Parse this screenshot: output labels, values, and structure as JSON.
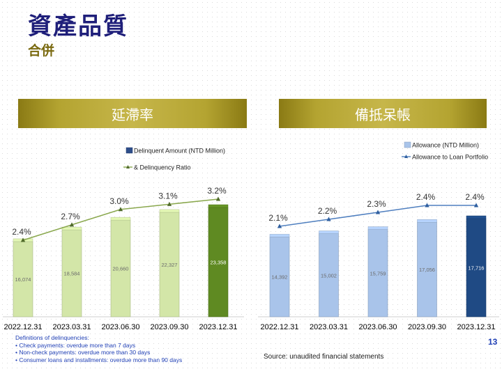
{
  "header": {
    "title": "資產品質",
    "subtitle": "合併"
  },
  "chart_data": [
    {
      "type": "bar",
      "title": "延滯率",
      "categories": [
        "2022.12.31",
        "2023.03.31",
        "2023.06.30",
        "2023.09.30",
        "2023.12.31"
      ],
      "series": [
        {
          "name": "Delinquent Amount (NTD Million)",
          "type": "bar",
          "values": [
            16074,
            18584,
            20660,
            22327,
            23358
          ],
          "value_labels": [
            "16,074",
            "18,584",
            "20,660",
            "22,327",
            "23,358"
          ]
        },
        {
          "name": "& Delinquency Ratio",
          "type": "line",
          "values": [
            2.4,
            2.7,
            3.0,
            3.1,
            3.2
          ],
          "value_labels": [
            "2.4%",
            "2.7%",
            "3.0%",
            "3.1%",
            "3.2%"
          ]
        }
      ],
      "colors": {
        "bar": "#d3e6a8",
        "bar_highlight": "#5f8a22",
        "line": "#8aa84e"
      }
    },
    {
      "type": "bar",
      "title": "備抵呆帳",
      "categories": [
        "2022.12.31",
        "2023.03.31",
        "2023.06.30",
        "2023.09.30",
        "2023.12.31"
      ],
      "series": [
        {
          "name": "Allowance  (NTD Million)",
          "type": "bar",
          "values": [
            14392,
            15002,
            15759,
            17056,
            17716
          ],
          "value_labels": [
            "14,392",
            "15,002",
            "15,759",
            "17,056",
            "17,716"
          ]
        },
        {
          "name": "Allowance to Loan Portfolio",
          "type": "line",
          "values": [
            2.1,
            2.2,
            2.3,
            2.4,
            2.4
          ],
          "value_labels": [
            "2.1%",
            "2.2%",
            "2.3%",
            "2.4%",
            "2.4%"
          ]
        }
      ],
      "colors": {
        "bar": "#a9c4ea",
        "bar_highlight": "#1f4a84",
        "line": "#4f7fbf"
      }
    }
  ],
  "notes": {
    "heading": "Definitions of delinquencies:",
    "items": [
      "•    Check payments: overdue more than 7 days",
      "•    Non-check payments: overdue  more than 30 days",
      "•    Consumer loans and installments: overdue more than 90 days"
    ]
  },
  "source": "Source: unaudited financial statements",
  "page_number": "13"
}
